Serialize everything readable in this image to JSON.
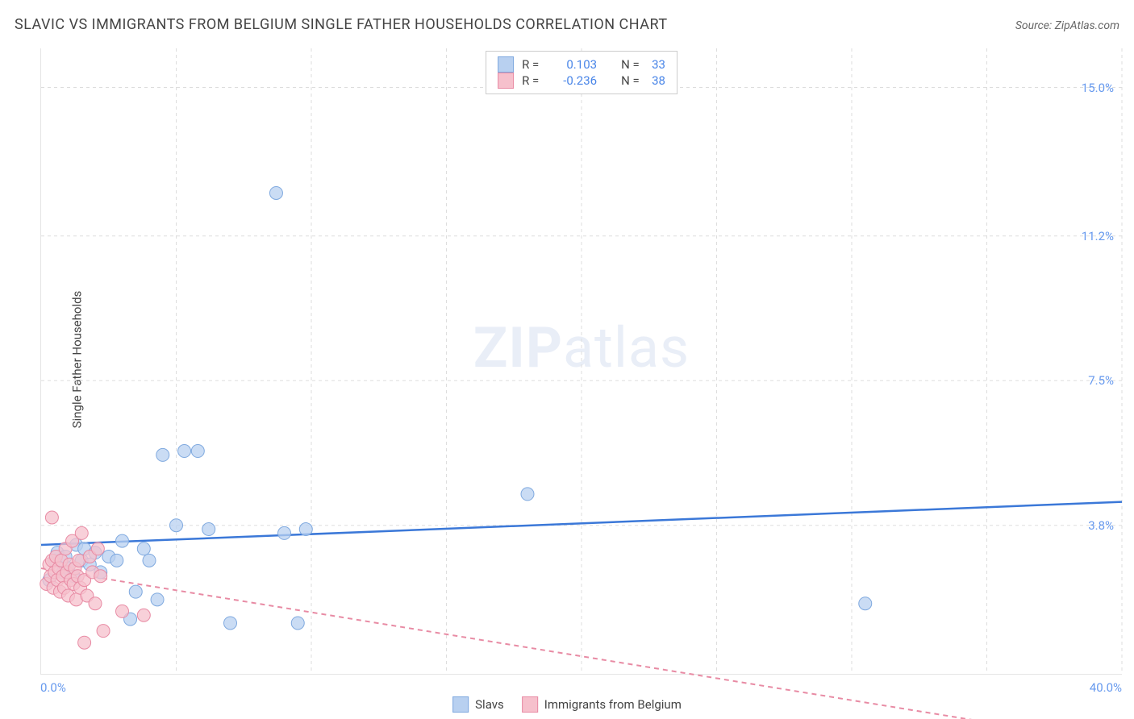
{
  "title": "SLAVIC VS IMMIGRANTS FROM BELGIUM SINGLE FATHER HOUSEHOLDS CORRELATION CHART",
  "source": "Source: ZipAtlas.com",
  "y_axis_label": "Single Father Households",
  "watermark": {
    "bold": "ZIP",
    "light": "atlas"
  },
  "chart": {
    "type": "scatter",
    "background_color": "#ffffff",
    "grid_color": "#dddddd",
    "grid_dash": "4,4",
    "x_range": [
      0,
      40
    ],
    "y_range": [
      0,
      16
    ],
    "x_ticks": [
      {
        "pos": 0,
        "label": "0.0%"
      },
      {
        "pos": 40,
        "label": "40.0%"
      }
    ],
    "x_grid_positions": [
      0,
      5,
      10,
      15,
      20,
      25,
      30,
      35,
      40
    ],
    "y_ticks": [
      {
        "pos": 3.8,
        "label": "3.8%"
      },
      {
        "pos": 7.5,
        "label": "7.5%"
      },
      {
        "pos": 11.2,
        "label": "11.2%"
      },
      {
        "pos": 15.0,
        "label": "15.0%"
      }
    ],
    "x_tick_label_color": "#6699ee",
    "y_tick_label_color": "#6699ee",
    "marker_radius": 8,
    "marker_stroke_width": 1,
    "series": [
      {
        "name": "Slavs",
        "fill_color": "#b8d0f0",
        "stroke_color": "#7fa9df",
        "fill_opacity": 0.75,
        "trend": {
          "color": "#3b78d8",
          "width": 2.5,
          "dash": "none",
          "y_at_x0": 3.3,
          "y_at_xmax": 4.4
        },
        "points": [
          [
            0.3,
            2.4
          ],
          [
            0.5,
            2.9
          ],
          [
            0.6,
            3.1
          ],
          [
            0.8,
            2.6
          ],
          [
            0.9,
            3.0
          ],
          [
            1.0,
            2.7
          ],
          [
            1.2,
            2.5
          ],
          [
            1.3,
            3.3
          ],
          [
            1.5,
            2.9
          ],
          [
            1.6,
            3.2
          ],
          [
            1.8,
            2.8
          ],
          [
            2.0,
            3.1
          ],
          [
            2.2,
            2.6
          ],
          [
            2.5,
            3.0
          ],
          [
            2.8,
            2.9
          ],
          [
            3.0,
            3.4
          ],
          [
            3.3,
            1.4
          ],
          [
            3.5,
            2.1
          ],
          [
            3.8,
            3.2
          ],
          [
            4.0,
            2.9
          ],
          [
            4.3,
            1.9
          ],
          [
            4.5,
            5.6
          ],
          [
            5.0,
            3.8
          ],
          [
            5.3,
            5.7
          ],
          [
            5.8,
            5.7
          ],
          [
            6.2,
            3.7
          ],
          [
            7.0,
            1.3
          ],
          [
            8.7,
            12.3
          ],
          [
            9.0,
            3.6
          ],
          [
            9.5,
            1.3
          ],
          [
            9.8,
            3.7
          ],
          [
            18.0,
            4.6
          ],
          [
            30.5,
            1.8
          ]
        ]
      },
      {
        "name": "Immigrants from Belgium",
        "fill_color": "#f6c0cc",
        "stroke_color": "#e88ba4",
        "fill_opacity": 0.75,
        "trend": {
          "color": "#e88ba4",
          "width": 2,
          "dash": "6,5",
          "y_at_x0": 2.7,
          "y_at_xmax": -1.8
        },
        "points": [
          [
            0.2,
            2.3
          ],
          [
            0.3,
            2.8
          ],
          [
            0.35,
            2.5
          ],
          [
            0.4,
            2.9
          ],
          [
            0.45,
            2.2
          ],
          [
            0.5,
            2.6
          ],
          [
            0.55,
            3.0
          ],
          [
            0.6,
            2.4
          ],
          [
            0.65,
            2.7
          ],
          [
            0.7,
            2.1
          ],
          [
            0.75,
            2.9
          ],
          [
            0.8,
            2.5
          ],
          [
            0.85,
            2.2
          ],
          [
            0.9,
            3.2
          ],
          [
            0.95,
            2.6
          ],
          [
            1.0,
            2.0
          ],
          [
            1.05,
            2.8
          ],
          [
            1.1,
            2.4
          ],
          [
            1.15,
            3.4
          ],
          [
            1.2,
            2.3
          ],
          [
            1.25,
            2.7
          ],
          [
            1.3,
            1.9
          ],
          [
            1.35,
            2.5
          ],
          [
            1.4,
            2.9
          ],
          [
            1.45,
            2.2
          ],
          [
            1.5,
            3.6
          ],
          [
            1.6,
            2.4
          ],
          [
            1.7,
            2.0
          ],
          [
            1.8,
            3.0
          ],
          [
            1.9,
            2.6
          ],
          [
            2.0,
            1.8
          ],
          [
            2.1,
            3.2
          ],
          [
            2.2,
            2.5
          ],
          [
            1.6,
            0.8
          ],
          [
            2.3,
            1.1
          ],
          [
            3.0,
            1.6
          ],
          [
            3.8,
            1.5
          ],
          [
            0.4,
            4.0
          ]
        ]
      }
    ],
    "stats_legend": {
      "rows": [
        {
          "swatch_fill": "#b8d0f0",
          "swatch_stroke": "#7fa9df",
          "r": "0.103",
          "n": "33"
        },
        {
          "swatch_fill": "#f6c0cc",
          "swatch_stroke": "#e88ba4",
          "r": "-0.236",
          "n": "38"
        }
      ],
      "r_label": "R =",
      "n_label": "N ="
    },
    "bottom_legend": [
      {
        "swatch_fill": "#b8d0f0",
        "swatch_stroke": "#7fa9df",
        "label": "Slavs"
      },
      {
        "swatch_fill": "#f6c0cc",
        "swatch_stroke": "#e88ba4",
        "label": "Immigrants from Belgium"
      }
    ]
  }
}
